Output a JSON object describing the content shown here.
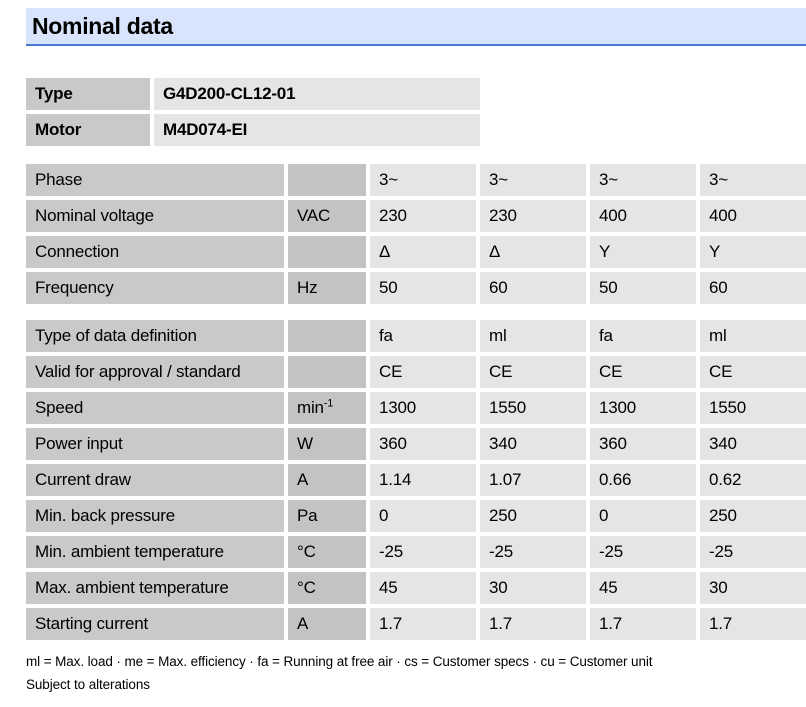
{
  "page": {
    "title": "Nominal data"
  },
  "colors": {
    "header_bg": "#d8e4fb",
    "header_line": "#4a7ad4",
    "label_cell_bg": "#c9c9c9",
    "unit_cell_bg": "#c3c3c3",
    "value_cell_bg": "#e5e5e5"
  },
  "info_table": {
    "rows": [
      {
        "label": "Type",
        "value": "G4D200-CL12-01"
      },
      {
        "label": "Motor",
        "value": "M4D074-EI"
      }
    ]
  },
  "main_table": {
    "section1": {
      "rows": [
        {
          "label": "Phase",
          "unit": "",
          "values": [
            "3~",
            "3~",
            "3~",
            "3~"
          ]
        },
        {
          "label": "Nominal voltage",
          "unit": "VAC",
          "values": [
            "230",
            "230",
            "400",
            "400"
          ]
        },
        {
          "label": "Connection",
          "unit": "",
          "values": [
            "Δ",
            "Δ",
            "Y",
            "Y"
          ]
        },
        {
          "label": "Frequency",
          "unit": "Hz",
          "values": [
            "50",
            "60",
            "50",
            "60"
          ]
        }
      ]
    },
    "section2": {
      "rows": [
        {
          "label": "Type of data definition",
          "unit": "",
          "values": [
            "fa",
            "ml",
            "fa",
            "ml"
          ]
        },
        {
          "label": "Valid for approval / standard",
          "unit": "",
          "values": [
            "CE",
            "CE",
            "CE",
            "CE"
          ]
        },
        {
          "label": "Speed",
          "unit": "min",
          "unit_sup": "-1",
          "values": [
            "1300",
            "1550",
            "1300",
            "1550"
          ]
        },
        {
          "label": "Power input",
          "unit": "W",
          "values": [
            "360",
            "340",
            "360",
            "340"
          ]
        },
        {
          "label": "Current draw",
          "unit": "A",
          "values": [
            "1.14",
            "1.07",
            "0.66",
            "0.62"
          ]
        },
        {
          "label": "Min. back pressure",
          "unit": "Pa",
          "values": [
            "0",
            "250",
            "0",
            "250"
          ]
        },
        {
          "label": "Min. ambient temperature",
          "unit": "°C",
          "values": [
            "-25",
            "-25",
            "-25",
            "-25"
          ]
        },
        {
          "label": "Max. ambient temperature",
          "unit": "°C",
          "values": [
            "45",
            "30",
            "45",
            "30"
          ]
        },
        {
          "label": "Starting current",
          "unit": "A",
          "values": [
            "1.7",
            "1.7",
            "1.7",
            "1.7"
          ]
        }
      ]
    }
  },
  "footer": {
    "legend": "ml = Max. load · me = Max. efficiency · fa = Running at free air · cs = Customer specs · cu = Customer unit",
    "note": "Subject to alterations"
  }
}
